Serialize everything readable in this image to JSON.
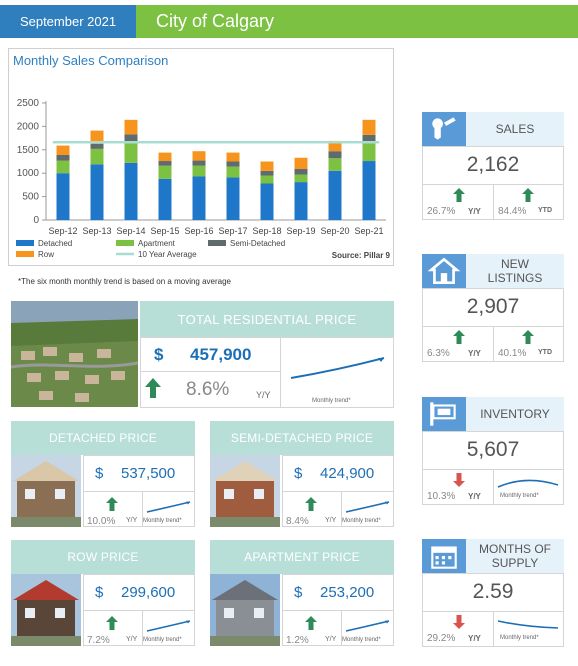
{
  "header": {
    "date": "September 2021",
    "city": "City of Calgary"
  },
  "chart_data": {
    "type": "bar",
    "title": "Monthly Sales Comparison",
    "categories": [
      "Sep-12",
      "Sep-13",
      "Sep-14",
      "Sep-15",
      "Sep-16",
      "Sep-17",
      "Sep-18",
      "Sep-19",
      "Sep-20",
      "Sep-21"
    ],
    "series": [
      {
        "name": "Detached",
        "color": "#1f77c9",
        "values": [
          1000,
          1190,
          1220,
          880,
          930,
          910,
          780,
          810,
          1050,
          1260
        ]
      },
      {
        "name": "Apartment",
        "color": "#7cc142",
        "values": [
          270,
          330,
          440,
          280,
          230,
          230,
          170,
          160,
          270,
          400
        ]
      },
      {
        "name": "Semi-Detached",
        "color": "#5f6b6d",
        "values": [
          120,
          110,
          170,
          100,
          110,
          110,
          100,
          120,
          150,
          160
        ]
      },
      {
        "name": "Row",
        "color": "#f7941d",
        "values": [
          200,
          280,
          310,
          180,
          200,
          190,
          200,
          240,
          220,
          320
        ]
      }
    ],
    "average": {
      "name": "10 Year Average",
      "color": "#a8dcd1",
      "value": 1660
    },
    "yticks": [
      0,
      500,
      1000,
      1500,
      2000,
      2500
    ],
    "ylim": [
      0,
      2500
    ],
    "source": "Source: Pillar 9",
    "legend_position": "bottom-left"
  },
  "note": "*The six month monthly trend is based on a moving average",
  "total": {
    "title": "TOTAL RESIDENTIAL PRICE",
    "dollar": "$",
    "value": "457,900",
    "pct": "8.6%",
    "yy": "Y/Y",
    "trend": "Monthly trend*"
  },
  "cards": [
    {
      "title": "DETACHED PRICE",
      "dollar": "$",
      "value": "537,500",
      "pct": "10.0%",
      "yy": "Y/Y",
      "trend": "Monthly trend*"
    },
    {
      "title": "SEMI-DETACHED PRICE",
      "dollar": "$",
      "value": "424,900",
      "pct": "8.4%",
      "yy": "Y/Y",
      "trend": "Monthly trend*"
    },
    {
      "title": "ROW PRICE",
      "dollar": "$",
      "value": "299,600",
      "pct": "7.2%",
      "yy": "Y/Y",
      "trend": "Monthly trend*"
    },
    {
      "title": "APARTMENT PRICE",
      "dollar": "$",
      "value": "253,200",
      "pct": "1.2%",
      "yy": "Y/Y",
      "trend": "Monthly trend*"
    }
  ],
  "stats": [
    {
      "label": "SALES",
      "icon": "key-icon",
      "value": "2,162",
      "left_pct": "26.7%",
      "left_unit": "Y/Y",
      "right_pct": "84.4%",
      "right_unit": "YTD",
      "left_dir": "up",
      "right_dir": "up"
    },
    {
      "label": "NEW\nLISTINGS",
      "icon": "house-icon",
      "value": "2,907",
      "left_pct": "6.3%",
      "left_unit": "Y/Y",
      "right_pct": "40.1%",
      "right_unit": "YTD",
      "left_dir": "up",
      "right_dir": "up"
    },
    {
      "label": "INVENTORY",
      "icon": "sign-icon",
      "value": "5,607",
      "left_pct": "10.3%",
      "left_unit": "Y/Y",
      "trend": "Monthly trend*",
      "left_dir": "down"
    },
    {
      "label": "MONTHS OF\nSUPPLY",
      "icon": "calendar-icon",
      "value": "2.59",
      "left_pct": "29.2%",
      "left_unit": "Y/Y",
      "trend": "Monthly trend*",
      "left_dir": "down"
    }
  ]
}
